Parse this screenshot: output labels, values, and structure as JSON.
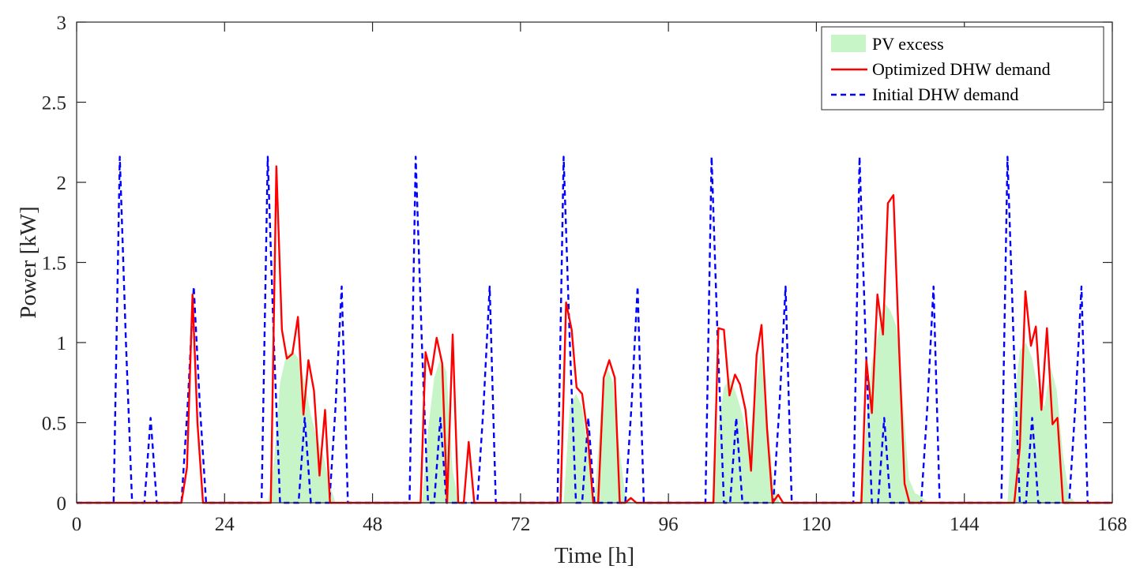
{
  "chart_data": {
    "type": "line",
    "xlabel": "Time [h]",
    "ylabel": "Power [kW]",
    "xlim": [
      0,
      168
    ],
    "ylim": [
      0,
      3
    ],
    "xticks": [
      0,
      24,
      48,
      72,
      96,
      120,
      144,
      168
    ],
    "yticks": [
      0,
      0.5,
      1,
      1.5,
      2,
      2.5,
      3
    ],
    "ytick_labels": [
      "0",
      "0.5",
      "1",
      "1.5",
      "2",
      "2.5",
      "3"
    ],
    "grid": false,
    "legend_position": "top-right",
    "series": [
      {
        "name": "PV excess",
        "style": "area",
        "color": "#c8f5c8",
        "x": [
          0,
          31,
          32,
          33,
          34,
          35,
          36,
          37,
          38,
          39,
          40,
          41,
          42,
          43,
          56,
          57,
          58,
          59,
          60,
          61,
          62,
          79,
          80,
          81,
          82,
          83,
          84,
          85,
          86,
          87,
          88,
          89,
          90,
          103,
          104,
          105,
          106,
          107,
          108,
          109,
          110,
          111,
          112,
          113,
          114,
          127,
          128,
          129,
          130,
          131,
          132,
          133,
          134,
          135,
          136,
          137,
          138,
          151,
          152,
          153,
          154,
          155,
          156,
          157,
          158,
          159,
          160,
          161,
          162,
          168
        ],
        "y": [
          0,
          0,
          0.25,
          0.75,
          0.92,
          0.95,
          0.9,
          0.75,
          0.55,
          0.4,
          0.3,
          0.12,
          0,
          0,
          0,
          0.45,
          0.78,
          0.9,
          0.82,
          0.2,
          0,
          0,
          0.6,
          0.68,
          0.6,
          0.3,
          0,
          0.55,
          0.85,
          0.75,
          0.35,
          0.05,
          0,
          0,
          0.45,
          0.72,
          0.78,
          0.68,
          0.55,
          0.35,
          0.65,
          0.95,
          0.55,
          0.12,
          0,
          0,
          0.45,
          0.88,
          1.05,
          1.25,
          1.2,
          1.1,
          0.65,
          0.15,
          0.06,
          0.04,
          0,
          0,
          0.6,
          0.95,
          1.0,
          0.9,
          0.7,
          0.6,
          0.85,
          0.7,
          0.3,
          0.05,
          0,
          0
        ]
      },
      {
        "name": "Optimized DHW demand",
        "style": "solid",
        "color": "#ff0000",
        "x": [
          0,
          17,
          17.9,
          18.8,
          19.6,
          20.5,
          21.4,
          31.5,
          32.4,
          33.3,
          34.1,
          35,
          35.9,
          36.8,
          37.6,
          38.5,
          39.4,
          40.3,
          41.1,
          42,
          55.8,
          56.6,
          57.5,
          58.4,
          59.3,
          60.1,
          61,
          61.9,
          62.8,
          63.6,
          64.5,
          65.4,
          78.5,
          79.4,
          80.3,
          81.1,
          82,
          82.9,
          83.8,
          84.6,
          85.5,
          86.4,
          87.3,
          88.1,
          89,
          89.9,
          90.8,
          91.6,
          103.3,
          104.1,
          105,
          105.9,
          106.8,
          107.6,
          108.5,
          109.4,
          110.3,
          111.1,
          112,
          112.9,
          113.8,
          114.6,
          115.5,
          116.4,
          127.3,
          128.1,
          129,
          129.9,
          130.8,
          131.6,
          132.5,
          133.4,
          134.3,
          135.1,
          136,
          151.3,
          152.1,
          153,
          153.9,
          154.8,
          155.6,
          156.5,
          157.4,
          158.3,
          159.1,
          160,
          160.9,
          168
        ],
        "y": [
          0,
          0,
          0.22,
          1.3,
          0.5,
          0,
          0,
          0,
          2.1,
          1.08,
          0.9,
          0.93,
          1.16,
          0.55,
          0.89,
          0.7,
          0.17,
          0.58,
          0,
          0,
          0,
          0.94,
          0.8,
          1.03,
          0.87,
          0,
          1.05,
          0,
          0,
          0.38,
          0,
          0,
          0,
          1.25,
          1.08,
          0.72,
          0.68,
          0.42,
          0,
          0,
          0.78,
          0.89,
          0.78,
          0,
          0,
          0.03,
          0,
          0,
          0,
          1.09,
          1.08,
          0.67,
          0.8,
          0.74,
          0.58,
          0.2,
          0.92,
          1.11,
          0.46,
          0,
          0.05,
          0,
          0,
          0,
          0,
          0.89,
          0.56,
          1.3,
          1.05,
          1.87,
          1.92,
          0.98,
          0.12,
          0,
          0,
          0,
          0,
          0.35,
          1.32,
          0.98,
          1.1,
          0.58,
          1.09,
          0.49,
          0.53,
          0,
          0,
          0
        ],
        "clip_zero_runs": true
      },
      {
        "name": "Initial DHW demand",
        "style": "dashed",
        "color": "#0000ff",
        "x": [
          0,
          6,
          7,
          8,
          9,
          10,
          11,
          12,
          13,
          14,
          17,
          18,
          19,
          20,
          21,
          24,
          30,
          31,
          32,
          33,
          34,
          35,
          36,
          37,
          38,
          41,
          42,
          43,
          44,
          48,
          54,
          55,
          56,
          57,
          58,
          59,
          60,
          61,
          62,
          65,
          66,
          67,
          68,
          72,
          78,
          79,
          80,
          81,
          82,
          83,
          84,
          89,
          90,
          91,
          92,
          96,
          102,
          103,
          104,
          105,
          106,
          107,
          108,
          109,
          110,
          113,
          114,
          115,
          116,
          120,
          126,
          127,
          128,
          129,
          130,
          131,
          132,
          133,
          134,
          137,
          138,
          139,
          140,
          144,
          150,
          151,
          152,
          153,
          154,
          155,
          156,
          157,
          158,
          161,
          162,
          163,
          164,
          168
        ],
        "y": [
          0,
          0,
          2.16,
          1.0,
          0,
          0,
          0,
          0.53,
          0,
          0,
          0,
          0.6,
          1.35,
          0.6,
          0,
          0,
          0,
          2.16,
          1.0,
          0,
          0,
          0,
          0,
          0.53,
          0,
          0,
          0.6,
          1.35,
          0,
          0,
          0,
          2.16,
          1.0,
          0,
          0,
          0.53,
          0,
          0,
          0,
          0,
          0.6,
          1.35,
          0,
          0,
          0,
          2.16,
          1.0,
          0,
          0,
          0.53,
          0,
          0,
          0.6,
          1.35,
          0,
          0,
          0,
          2.16,
          1.0,
          0,
          0,
          0.53,
          0,
          0,
          0,
          0,
          0.6,
          1.35,
          0,
          0,
          0,
          2.16,
          1.0,
          0,
          0,
          0.53,
          0,
          0,
          0,
          0,
          0.6,
          1.35,
          0,
          0,
          0,
          2.16,
          1.0,
          0,
          0,
          0.53,
          0,
          0,
          0,
          0,
          0.6,
          1.35,
          0,
          0
        ]
      }
    ]
  }
}
